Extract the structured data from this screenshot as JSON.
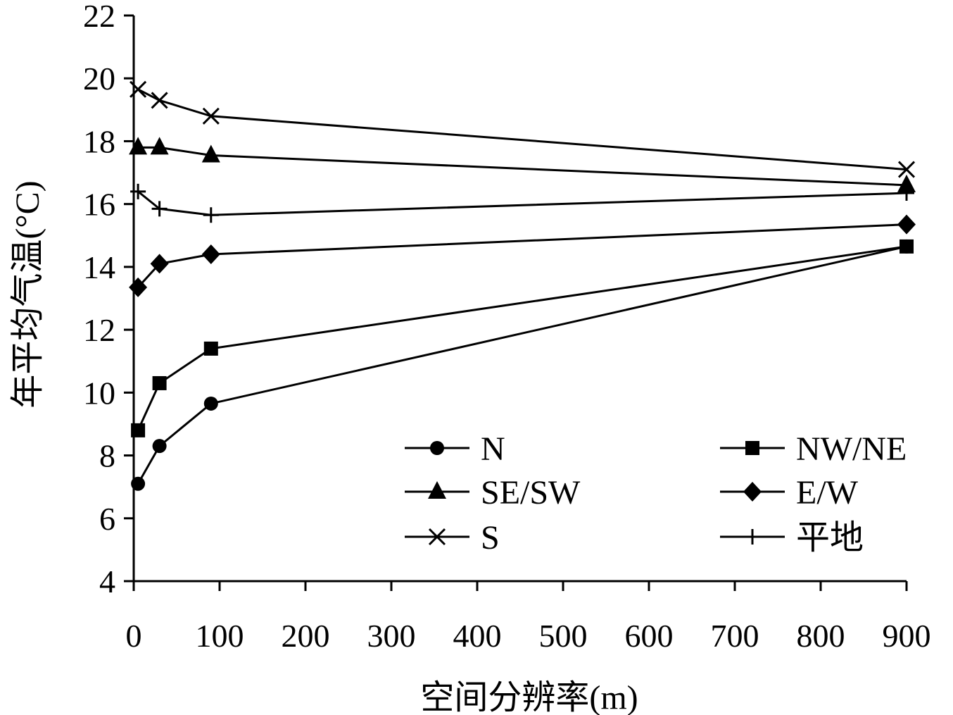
{
  "chart_data": {
    "type": "line",
    "title": "",
    "xlabel": "空间分辨率(m)",
    "ylabel": "年平均气温(°C)",
    "xlim": [
      0,
      900
    ],
    "ylim": [
      4,
      22
    ],
    "x_ticks": [
      "0",
      "100",
      "200",
      "300",
      "400",
      "500",
      "600",
      "700",
      "800",
      "900"
    ],
    "y_ticks": [
      "4",
      "6",
      "8",
      "10",
      "12",
      "14",
      "16",
      "18",
      "20",
      "22"
    ],
    "grid": false,
    "legend_position": "lower-right",
    "x": [
      5,
      30,
      90,
      900
    ],
    "series": [
      {
        "name": "N",
        "marker": "circle",
        "values": [
          7.1,
          8.3,
          9.65,
          14.65
        ]
      },
      {
        "name": "NW/NE",
        "marker": "square",
        "values": [
          8.8,
          10.3,
          11.4,
          14.65
        ]
      },
      {
        "name": "SE/SW",
        "marker": "triangle",
        "values": [
          17.8,
          17.8,
          17.55,
          16.6
        ]
      },
      {
        "name": "E/W",
        "marker": "diamond",
        "values": [
          13.35,
          14.1,
          14.4,
          15.35
        ]
      },
      {
        "name": "S",
        "marker": "x",
        "values": [
          19.65,
          19.3,
          18.8,
          17.1
        ]
      },
      {
        "name": "平地",
        "marker": "plus",
        "values": [
          16.4,
          15.85,
          15.65,
          16.35
        ]
      }
    ]
  }
}
